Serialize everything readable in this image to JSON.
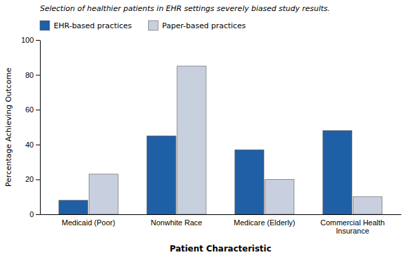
{
  "chart_data": {
    "type": "bar",
    "categories": [
      "Medicaid (Poor)",
      "Nonwhite Race",
      "Medicare (Elderly)",
      "Commercial Health\nInsurance"
    ],
    "series": [
      {
        "name": "EHR-based practices",
        "color": "#1F5FA6",
        "values": [
          8,
          45,
          37,
          48
        ]
      },
      {
        "name": "Paper-based practices",
        "color": "#C8D0E0",
        "values": [
          23,
          85,
          20,
          10
        ]
      }
    ],
    "xlabel": "Patient Characteristic",
    "ylabel": "Percentage Achieving Outcome",
    "annotation": "Selection of healthier patients in EHR settings severely biased study results.",
    "ylim": [
      0,
      100
    ],
    "yticks": [
      0,
      20,
      40,
      60,
      80,
      100
    ],
    "legend": "top",
    "grid": false
  }
}
